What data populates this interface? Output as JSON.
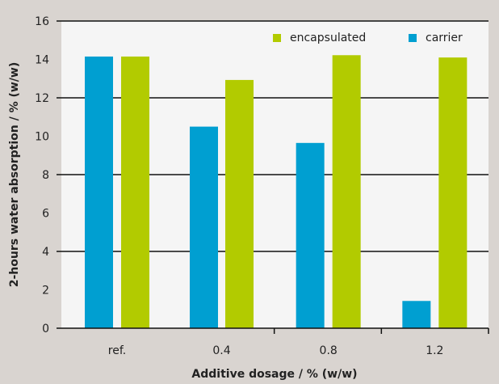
{
  "chart_data": {
    "type": "bar",
    "title": "",
    "xlabel": "Additive dosage / % (w/w)",
    "ylabel": "2-hours water absorption / % (w/w)",
    "categories": [
      "ref.",
      "0.4",
      "0.8",
      "1.2"
    ],
    "series": [
      {
        "name": "carrier",
        "color": "#009fd1",
        "values": [
          14.15,
          10.5,
          9.65,
          1.42
        ]
      },
      {
        "name": "encapsulated",
        "color": "#b2cb00",
        "values": [
          14.15,
          12.93,
          14.22,
          14.1
        ]
      }
    ],
    "ylim": [
      0,
      16
    ],
    "yticks": [
      "0",
      "2",
      "4",
      "6",
      "8",
      "10",
      "12",
      "14",
      "16"
    ],
    "legend": {
      "placement": "top-right",
      "order": [
        "encapsulated",
        "carrier"
      ]
    },
    "grid": true
  }
}
